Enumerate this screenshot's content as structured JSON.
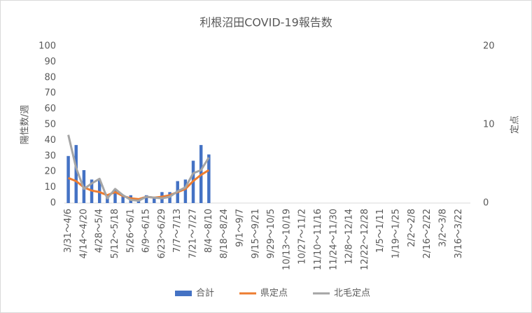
{
  "chart_data": {
    "type": "bar_line",
    "title": "利根沼田COVID-19報告数",
    "categories": [
      "3/31～4/6",
      null,
      "4/14～4/20",
      null,
      "4/28～5/4",
      null,
      "5/12～5/18",
      null,
      "5/26～6/1",
      null,
      "6/9～6/15",
      null,
      "6/23～6/29",
      null,
      "7/7～7/13",
      null,
      "7/21～7/27",
      null,
      "8/4～8/10",
      null,
      "8/18～8/24",
      null,
      "9/1～9/7",
      null,
      "9/15～9/21",
      null,
      "9/29～10/5",
      null,
      "10/13～10/19",
      null,
      "10/27～11/2",
      null,
      "11/10～11/16",
      null,
      "11/24～11/30",
      null,
      "12/8～12/14",
      null,
      "12/22～12/28",
      null,
      "1/5～1/11",
      null,
      "1/19～1/25",
      null,
      "2/2～2/8",
      null,
      "2/16～2/22",
      null,
      "3/2～3/8",
      null,
      "3/16～3/22",
      null
    ],
    "series": [
      {
        "name": "合計",
        "color": "#4472c4",
        "kind": "bar",
        "values": [
          30,
          37,
          21,
          15,
          15,
          4,
          9,
          5,
          5,
          2,
          5,
          4,
          7,
          7,
          14,
          15,
          27,
          37,
          31,
          null,
          null,
          null,
          null,
          null,
          null,
          null,
          null,
          null,
          null,
          null,
          null,
          null,
          null,
          null,
          null,
          null,
          null,
          null,
          null,
          null,
          null,
          null,
          null,
          null,
          null,
          null,
          null,
          null,
          null,
          null,
          null,
          null
        ]
      },
      {
        "name": "県定点",
        "color": "#ed7d31",
        "kind": "line",
        "axis": "y2",
        "values": [
          3.2,
          2.8,
          2.0,
          1.6,
          1.4,
          1.0,
          1.4,
          0.9,
          0.6,
          0.5,
          0.8,
          0.7,
          0.8,
          1.0,
          1.4,
          1.8,
          2.8,
          3.6,
          4.2,
          null,
          null,
          null,
          null,
          null,
          null,
          null,
          null,
          null,
          null,
          null,
          null,
          null,
          null,
          null,
          null,
          null,
          null,
          null,
          null,
          null,
          null,
          null,
          null,
          null,
          null,
          null,
          null,
          null,
          null,
          null,
          null,
          null
        ]
      },
      {
        "name": "北毛定点",
        "color": "#a5a5a5",
        "kind": "line",
        "axis": "y2",
        "values": [
          8.7,
          4.5,
          1.8,
          2.5,
          3.1,
          0.6,
          1.8,
          1.0,
          0.4,
          0.3,
          0.8,
          0.7,
          0.6,
          0.8,
          1.5,
          2.0,
          3.8,
          4.2,
          5.8,
          null,
          null,
          null,
          null,
          null,
          null,
          null,
          null,
          null,
          null,
          null,
          null,
          null,
          null,
          null,
          null,
          null,
          null,
          null,
          null,
          null,
          null,
          null,
          null,
          null,
          null,
          null,
          null,
          null,
          null,
          null,
          null,
          null
        ]
      }
    ],
    "ylabel": "陽性数/週",
    "y2label": "定点",
    "ylim": [
      0,
      100
    ],
    "yticks": [
      0,
      10,
      20,
      30,
      40,
      50,
      60,
      70,
      80,
      90,
      100
    ],
    "y2lim": [
      0,
      20
    ],
    "y2ticks": [
      0,
      10,
      20
    ],
    "legend": "bottom"
  }
}
